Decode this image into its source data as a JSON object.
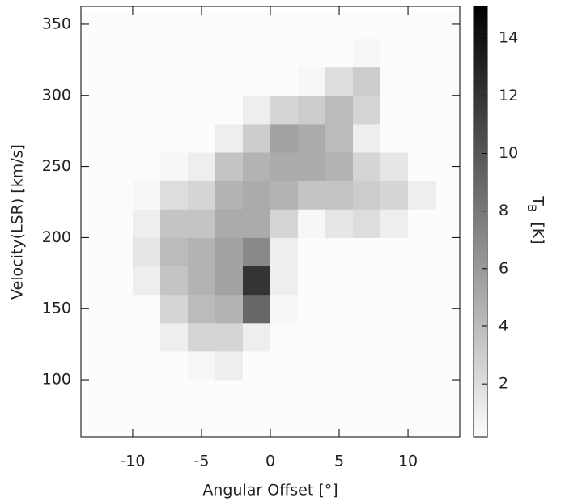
{
  "chart_data": {
    "type": "heatmap",
    "x_label": "Angular Offset [°]",
    "y_label": "Velocity(LSR) [km/s]",
    "x_edges": [
      -14,
      -12,
      -10,
      -8,
      -6,
      -4,
      -2,
      0,
      2,
      4,
      6,
      8,
      10,
      12,
      14
    ],
    "y_edges": [
      60,
      80,
      100,
      120,
      140,
      160,
      180,
      200,
      220,
      240,
      260,
      280,
      300,
      320,
      340,
      360
    ],
    "z": [
      [
        0.2,
        0.2,
        0.2,
        0.2,
        0.2,
        0.2,
        0.2,
        0.2,
        0.2,
        0.2,
        0.2,
        0.2,
        0.2,
        0.2
      ],
      [
        0.2,
        0.2,
        0.2,
        0.2,
        0.2,
        0.2,
        0.2,
        0.2,
        0.2,
        0.2,
        0.2,
        0.2,
        0.2,
        0.2
      ],
      [
        0.2,
        0.2,
        0.2,
        0.2,
        0.5,
        1,
        0.2,
        0.2,
        0.2,
        0.2,
        0.2,
        0.2,
        0.2,
        0.2
      ],
      [
        0.2,
        0.2,
        0.2,
        1,
        2.5,
        2.5,
        1,
        0.2,
        0.2,
        0.2,
        0.2,
        0.2,
        0.2,
        0.2
      ],
      [
        0.2,
        0.2,
        0.2,
        2.5,
        4,
        4.5,
        9,
        0.5,
        0.2,
        0.2,
        0.2,
        0.2,
        0.2,
        0.2
      ],
      [
        0.2,
        0.2,
        1,
        3.5,
        4.5,
        5.5,
        12,
        1,
        0.2,
        0.2,
        0.2,
        0.2,
        0.2,
        0.2
      ],
      [
        0.2,
        0.2,
        1.5,
        4,
        4.5,
        5.5,
        7,
        1,
        0.2,
        0.2,
        0.2,
        0.2,
        0.2,
        0.2
      ],
      [
        0.2,
        0.2,
        1,
        3.5,
        3.5,
        5,
        5,
        2.5,
        0.5,
        1.5,
        2,
        1,
        0.2,
        0.2
      ],
      [
        0.2,
        0.2,
        0.5,
        2,
        2.5,
        4.5,
        5,
        4.5,
        3.5,
        3.5,
        3,
        2.5,
        1,
        0.2
      ],
      [
        0.2,
        0.2,
        0.2,
        0.5,
        1,
        3.5,
        4.5,
        5,
        5,
        4.5,
        2.5,
        1.5,
        0.2,
        0.2
      ],
      [
        0.2,
        0.2,
        0.2,
        0.2,
        0.2,
        1,
        3,
        5.5,
        5,
        4,
        1,
        0.2,
        0.2,
        0.2
      ],
      [
        0.2,
        0.2,
        0.2,
        0.2,
        0.2,
        0.2,
        1,
        2.5,
        3,
        4,
        2.5,
        0.2,
        0.2,
        0.2
      ],
      [
        0.2,
        0.2,
        0.2,
        0.2,
        0.2,
        0.2,
        0.2,
        0.2,
        0.5,
        2,
        3,
        0.2,
        0.2,
        0.2
      ],
      [
        0.2,
        0.2,
        0.2,
        0.2,
        0.2,
        0.2,
        0.2,
        0.2,
        0.2,
        0.2,
        0.5,
        0.2,
        0.2,
        0.2
      ],
      [
        0.2,
        0.2,
        0.2,
        0.2,
        0.2,
        0.2,
        0.2,
        0.2,
        0.2,
        0.2,
        0.2,
        0.2,
        0.2,
        0.2
      ]
    ],
    "colormap": "gray_r",
    "xlim": [
      -13.76,
      13.76
    ],
    "ylim": [
      59.6,
      362.5
    ],
    "xticks": [
      -10,
      -5,
      0,
      5,
      10
    ],
    "yticks": [
      100,
      150,
      200,
      250,
      300,
      350
    ],
    "colorbar": {
      "label_main": "T",
      "label_sub": "B",
      "label_unit": "[K]",
      "zlim": [
        0.15,
        15.1
      ],
      "ticks": [
        2,
        4,
        6,
        8,
        10,
        12,
        14
      ]
    }
  }
}
